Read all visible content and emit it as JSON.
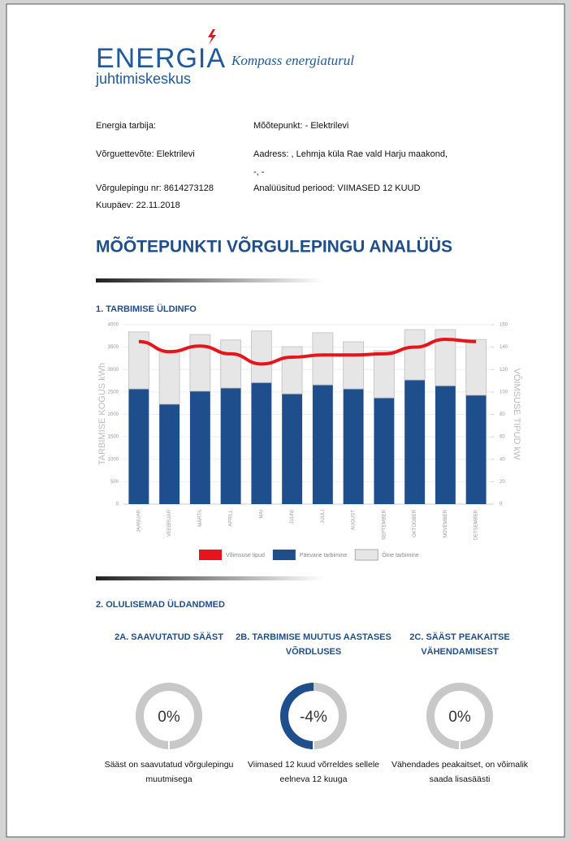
{
  "header": {
    "brand": "ENERGIA",
    "brand_sub": "juhtimiskeskus",
    "slogan": "Kompass energiaturul"
  },
  "info": {
    "left": [
      "Energia tarbija:",
      "Võrguettevõte: Elektrilevi",
      "Võrgulepingu nr: 8614273128",
      "Kuupäev: 22.11.2018"
    ],
    "right": [
      "Mõõtepunkt: - Elektrilevi",
      "Aadress: , Lehmja küla Rae vald Harju maakond,",
      "-, -",
      "Analüüsitud periood: VIIMASED 12 KUUD"
    ]
  },
  "heading": "MÕÕTEPUNKTI VÕRGULEPINGU ANALÜÜS",
  "chart_data": {
    "type": "bar",
    "stacked": true,
    "title": "1. TARBIMISE ÜLDINFO",
    "ylabel": "TARBIMISE KOGUS kWh",
    "y2label": "VÕIMSUSE TIPUD kW",
    "categories": [
      "JAANUAR",
      "VEEBRUAR",
      "MÄRTS",
      "APRILL",
      "MAI",
      "JUUNI",
      "JUULI",
      "AUGUST",
      "SEPTEMBER",
      "OKTOOBER",
      "NOVEMBER",
      "DETSEMBER"
    ],
    "series": [
      {
        "name": "Võimsuse tipud",
        "color": "#e8141b",
        "type": "line",
        "axis": "y2",
        "values": [
          145,
          136,
          141,
          134,
          125,
          131,
          133,
          133,
          134,
          140,
          147,
          145
        ]
      },
      {
        "name": "Päevane tarbimine",
        "color": "#1f4e8c",
        "type": "bar",
        "values": [
          2570,
          2230,
          2520,
          2590,
          2710,
          2460,
          2660,
          2570,
          2370,
          2770,
          2640,
          2430
        ]
      },
      {
        "name": "Öine tarbimine",
        "color": "#e6e6e6",
        "type": "bar",
        "values": [
          1270,
          1140,
          1260,
          1070,
          1150,
          1050,
          1160,
          1050,
          1050,
          1120,
          1250,
          1240
        ]
      }
    ],
    "ylim": [
      0,
      4000
    ],
    "yticks": [
      0,
      500,
      1000,
      1500,
      2000,
      2500,
      3000,
      3500,
      4000
    ],
    "y2lim": [
      0,
      160
    ],
    "y2ticks": [
      0,
      20,
      40,
      60,
      80,
      100,
      120,
      140,
      160
    ],
    "legend": "bottom"
  },
  "section2": "2. OLULISEMAD ÜLDANDMED",
  "cards": [
    {
      "title": [
        "2A. SAAVUTATUD SÄÄST"
      ],
      "percent": "0%",
      "text": [
        "Sääst on saavutatud võrgulepingu",
        "muutmisega"
      ]
    },
    {
      "title": [
        "2B. TARBIMISE MUUTUS AASTASES",
        "VÕRDLUSES"
      ],
      "percent": "-4%",
      "text": [
        "Viimased 12 kuud võrreldes sellele",
        "eelneva 12 kuuga"
      ]
    },
    {
      "title": [
        "2C. SÄÄST PEAKAITSE",
        "VÄHENDAMISEST"
      ],
      "percent": "0%",
      "text": [
        "Vähendades peakaitset, on võimalik",
        "saada lisasäästi"
      ]
    }
  ]
}
